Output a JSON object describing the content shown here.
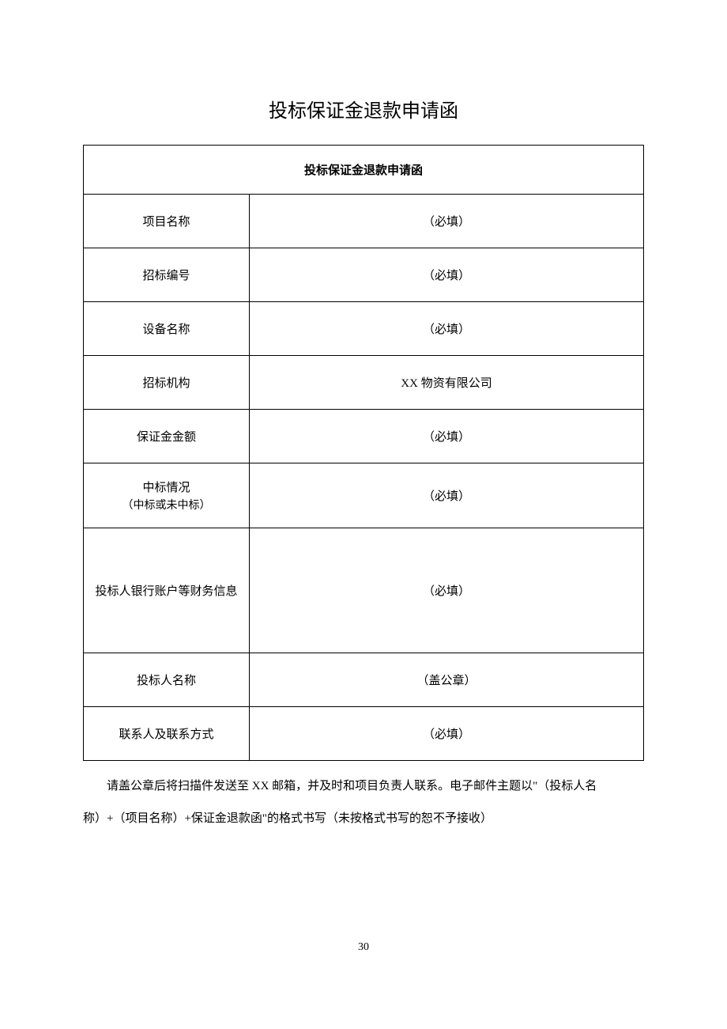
{
  "document": {
    "title": "投标保证金退款申请函",
    "page_number": "30",
    "background_color": "#ffffff",
    "text_color": "#000000",
    "border_color": "#000000",
    "font_family": "SimSun"
  },
  "table": {
    "header": "投标保证金退款申请函",
    "rows": [
      {
        "label": "项目名称",
        "sub_label": "",
        "value": "（必填）",
        "height": "std"
      },
      {
        "label": "招标编号",
        "sub_label": "",
        "value": "（必填）",
        "height": "std"
      },
      {
        "label": "设备名称",
        "sub_label": "",
        "value": "（必填）",
        "height": "std"
      },
      {
        "label": "招标机构",
        "sub_label": "",
        "value": "XX 物资有限公司",
        "height": "std"
      },
      {
        "label": "保证金金额",
        "sub_label": "",
        "value": "（必填）",
        "height": "std"
      },
      {
        "label": "中标情况",
        "sub_label": "（中标或未中标）",
        "value": "（必填）",
        "height": "bid"
      },
      {
        "label": "投标人银行账户等财务信息",
        "sub_label": "",
        "value": "（必填）",
        "height": "tall"
      },
      {
        "label": "投标人名称",
        "sub_label": "",
        "value": "（盖公章）",
        "height": "std"
      },
      {
        "label": "联系人及联系方式",
        "sub_label": "",
        "value": "（必填）",
        "height": "std"
      }
    ]
  },
  "footer": {
    "line1": "请盖公章后将扫描件发送至 XX 邮箱，并及时和项目负责人联系。电子邮件主题以\"（投标人名",
    "line2": "称）+（项目名称）+保证金退款函\"的格式书写（未按格式书写的恕不予接收）"
  }
}
